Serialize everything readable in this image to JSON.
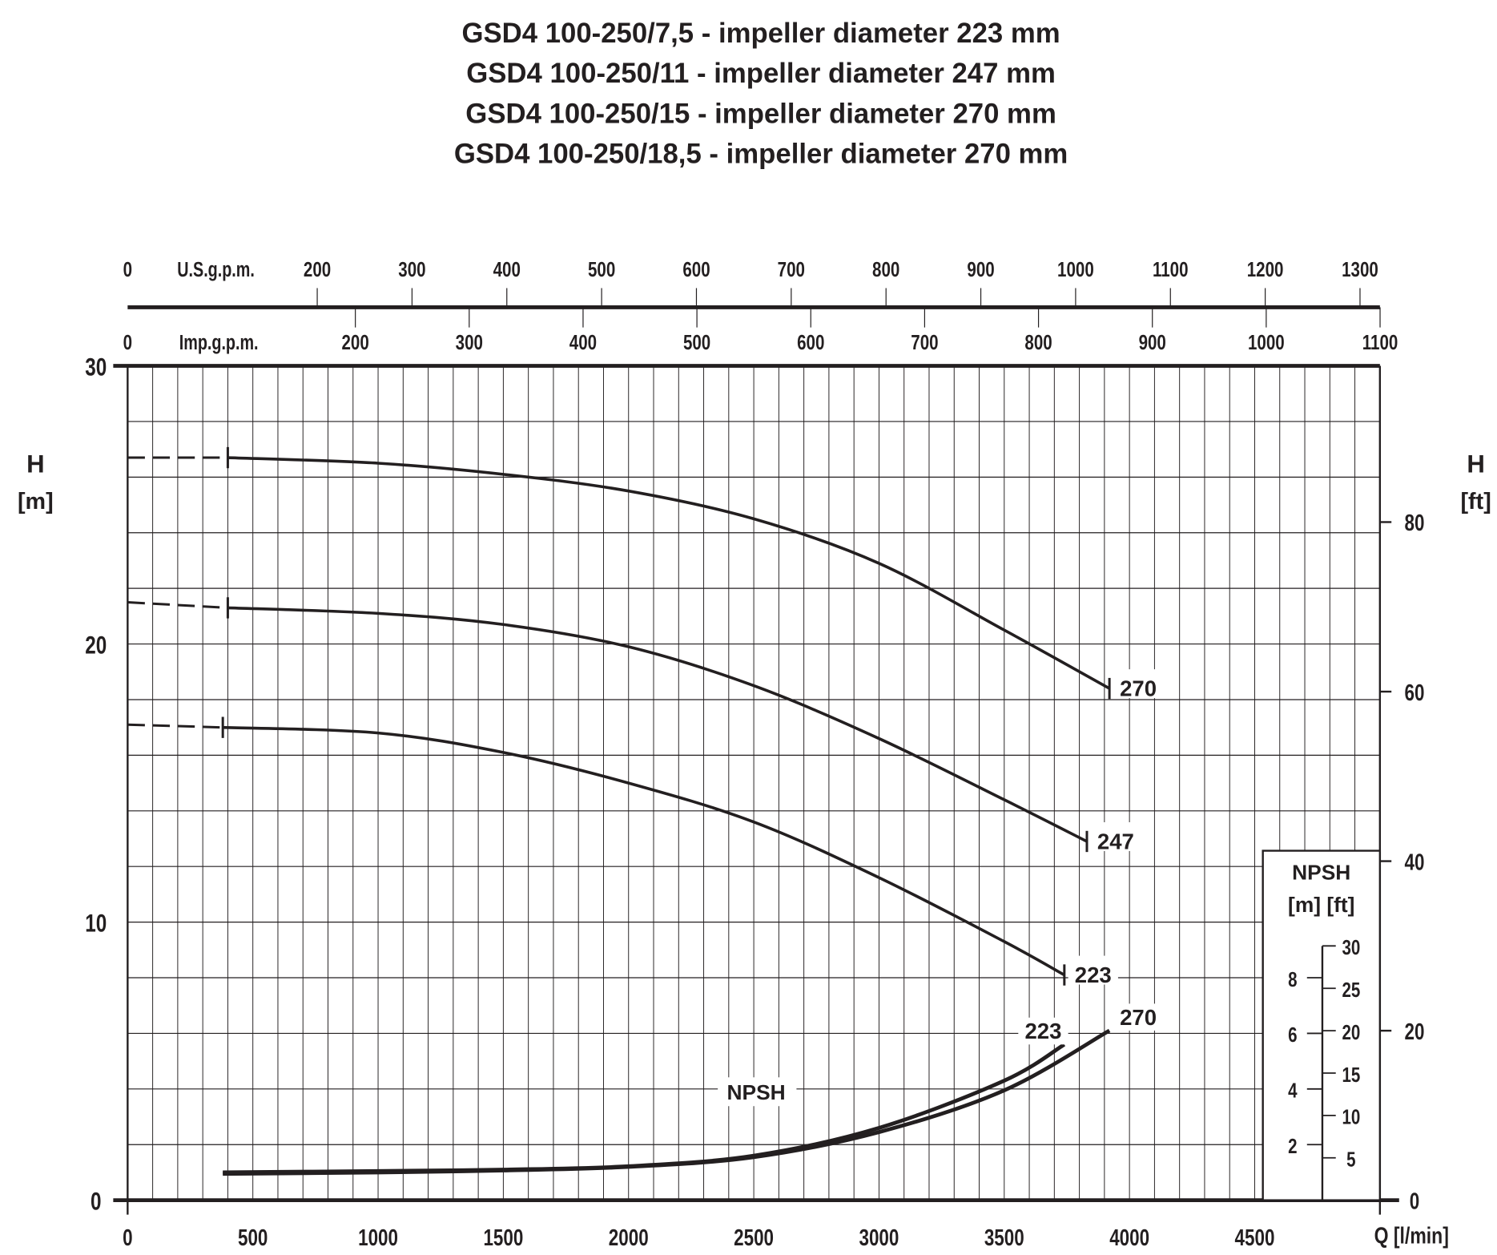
{
  "chart_data": {
    "type": "line",
    "title": [
      "GSD4 100-250/7,5 - impeller diameter 223 mm",
      "GSD4 100-250/11 - impeller diameter 247 mm",
      "GSD4 100-250/15 - impeller diameter 270 mm",
      "GSD4 100-250/18,5 - impeller diameter 270 mm"
    ],
    "xlabel": "Q [l/min]",
    "ylabel_left": [
      "H",
      "[m]"
    ],
    "ylabel_right": [
      "H",
      "[ft]"
    ],
    "xlim": [
      0,
      5000
    ],
    "ylim": [
      0,
      30
    ],
    "grid": true,
    "x_ticks": [
      0,
      500,
      1000,
      1500,
      2000,
      2500,
      3000,
      3500,
      4000,
      4500
    ],
    "y_ticks_m": [
      0,
      10,
      20,
      30
    ],
    "y_ticks_ft": [
      0,
      20,
      40,
      60,
      80
    ],
    "top_axis_us": {
      "label": "U.S.g.p.m.",
      "ticks": [
        0,
        200,
        300,
        400,
        500,
        600,
        700,
        800,
        900,
        1000,
        1100,
        1200,
        1300
      ],
      "l_per_unit": 3.785
    },
    "top_axis_imp": {
      "label": "Imp.g.p.m.",
      "ticks": [
        0,
        200,
        300,
        400,
        500,
        600,
        700,
        800,
        900,
        1000,
        1100
      ],
      "l_per_unit": 4.546
    },
    "npsh_inset": {
      "title": "NPSH",
      "units": "[m] [ft]",
      "m_ticks": [
        2,
        4,
        6,
        8
      ],
      "ft_ticks": [
        5,
        10,
        15,
        20,
        25,
        30
      ]
    },
    "npsh_label": "NPSH",
    "series": [
      {
        "name": "270",
        "kind": "H",
        "dashed_to": 400,
        "x": [
          0,
          400,
          1000,
          1500,
          2000,
          2500,
          3000,
          3500,
          3920
        ],
        "y": [
          26.7,
          26.7,
          26.5,
          26.1,
          25.5,
          24.5,
          22.9,
          20.5,
          18.4
        ]
      },
      {
        "name": "247",
        "kind": "H",
        "dashed_to": 400,
        "x": [
          0,
          400,
          1000,
          1500,
          2000,
          2500,
          3000,
          3500,
          3830
        ],
        "y": [
          21.5,
          21.3,
          21.1,
          20.7,
          19.9,
          18.5,
          16.6,
          14.4,
          12.9
        ]
      },
      {
        "name": "223",
        "kind": "H",
        "dashed_to": 380,
        "x": [
          0,
          380,
          1000,
          1500,
          2000,
          2500,
          3000,
          3500,
          3740
        ],
        "y": [
          17.1,
          17.0,
          16.8,
          16.1,
          15.0,
          13.6,
          11.6,
          9.3,
          8.1
        ]
      },
      {
        "name": "270",
        "kind": "NPSH",
        "x": [
          380,
          1000,
          1500,
          2000,
          2500,
          3000,
          3500,
          3920
        ],
        "y": [
          0.95,
          1.0,
          1.07,
          1.2,
          1.55,
          2.45,
          3.95,
          6.1
        ]
      },
      {
        "name": "223",
        "kind": "NPSH",
        "x": [
          380,
          1000,
          1500,
          2000,
          2500,
          3000,
          3500,
          3740
        ],
        "y": [
          1.0,
          1.05,
          1.1,
          1.22,
          1.6,
          2.6,
          4.3,
          5.6
        ]
      }
    ]
  }
}
